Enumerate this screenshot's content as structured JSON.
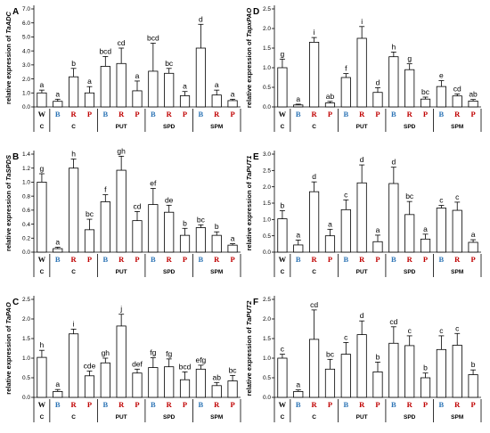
{
  "colors": {
    "W": "#000000",
    "C": "#000000",
    "B": "#2e75b6",
    "R": "#c00000",
    "P": "#c00000"
  },
  "chart_data": [
    {
      "type": "bar",
      "panel": "A",
      "ylabel": "relative expression of TaADC",
      "ylim": [
        0,
        7
      ],
      "yticks": [
        0,
        1,
        2,
        3,
        4,
        5,
        6,
        7
      ],
      "ytick_labels": [
        "0.0",
        "1.0",
        "2.0",
        "3.0",
        "4.0",
        "5.0",
        "6.0",
        "7.0"
      ],
      "categories": [
        "W",
        "B",
        "R",
        "P",
        "B",
        "R",
        "P",
        "B",
        "R",
        "P",
        "B",
        "R",
        "P"
      ],
      "values": [
        1.0,
        0.4,
        2.15,
        1.0,
        2.9,
        3.1,
        1.15,
        2.55,
        2.4,
        0.8,
        4.2,
        0.85,
        0.45
      ],
      "errors": [
        0.2,
        0.15,
        0.6,
        0.45,
        0.7,
        1.1,
        0.7,
        2.0,
        0.35,
        0.3,
        1.7,
        0.35,
        0.1
      ],
      "letters": [
        "a",
        "a",
        "b",
        "a",
        "bcd",
        "cd",
        "a",
        "bcd",
        "bc",
        "a",
        "d",
        "a",
        "a"
      ],
      "groups": [
        "C",
        "C",
        "PUT",
        "SPD",
        "SPM"
      ]
    },
    {
      "type": "bar",
      "panel": "D",
      "ylabel": "relative expression of TapxPAO",
      "ylim": [
        0,
        2.5
      ],
      "yticks": [
        0,
        0.5,
        1,
        1.5,
        2,
        2.5
      ],
      "ytick_labels": [
        "0.0",
        "0.5",
        "1.0",
        "1.5",
        "2.0",
        "2.5"
      ],
      "categories": [
        "W",
        "B",
        "R",
        "P",
        "B",
        "R",
        "P",
        "B",
        "R",
        "P",
        "B",
        "R",
        "P"
      ],
      "values": [
        1.0,
        0.05,
        1.65,
        0.1,
        0.75,
        1.75,
        0.37,
        1.28,
        0.95,
        0.2,
        0.52,
        0.28,
        0.15
      ],
      "errors": [
        0.22,
        0.02,
        0.12,
        0.04,
        0.1,
        0.3,
        0.12,
        0.12,
        0.15,
        0.05,
        0.15,
        0.05,
        0.04
      ],
      "letters": [
        "g",
        "a",
        "i",
        "ab",
        "f",
        "i",
        "d",
        "h",
        "g",
        "bc",
        "e",
        "cd",
        "ab"
      ],
      "groups": [
        "C",
        "C",
        "PUT",
        "SPD",
        "SPM"
      ]
    },
    {
      "type": "bar",
      "panel": "B",
      "ylabel": "relative expression of TaSPDS",
      "ylim": [
        0,
        1.4
      ],
      "yticks": [
        0,
        0.2,
        0.4,
        0.6,
        0.8,
        1,
        1.2,
        1.4
      ],
      "ytick_labels": [
        "0.0",
        "0.2",
        "0.4",
        "0.6",
        "0.8",
        "1.0",
        "1.2",
        "1.4"
      ],
      "categories": [
        "W",
        "B",
        "R",
        "P",
        "B",
        "R",
        "P",
        "B",
        "R",
        "P",
        "B",
        "R",
        "P"
      ],
      "values": [
        1.0,
        0.05,
        1.2,
        0.32,
        0.72,
        1.17,
        0.45,
        0.68,
        0.57,
        0.24,
        0.35,
        0.24,
        0.1
      ],
      "errors": [
        0.12,
        0.02,
        0.13,
        0.15,
        0.1,
        0.2,
        0.13,
        0.23,
        0.1,
        0.1,
        0.04,
        0.05,
        0.02
      ],
      "letters": [
        "g",
        "a",
        "h",
        "bc",
        "f",
        "gh",
        "cd",
        "ef",
        "de",
        "b",
        "bc",
        "b",
        "a"
      ],
      "groups": [
        "C",
        "C",
        "PUT",
        "SPD",
        "SPM"
      ]
    },
    {
      "type": "bar",
      "panel": "E",
      "ylabel": "relative expression of TaPUT1",
      "ylim": [
        0,
        3
      ],
      "yticks": [
        0,
        0.5,
        1,
        1.5,
        2,
        2.5,
        3
      ],
      "ytick_labels": [
        "0.0",
        "0.5",
        "1.0",
        "1.5",
        "2.0",
        "2.5",
        "3.0"
      ],
      "categories": [
        "W",
        "B",
        "R",
        "P",
        "B",
        "R",
        "P",
        "B",
        "R",
        "P",
        "B",
        "R",
        "P"
      ],
      "values": [
        1.02,
        0.22,
        1.85,
        0.5,
        1.3,
        2.12,
        0.32,
        2.1,
        1.15,
        0.4,
        1.35,
        1.28,
        0.3
      ],
      "errors": [
        0.25,
        0.15,
        0.3,
        0.2,
        0.3,
        0.55,
        0.2,
        0.5,
        0.4,
        0.15,
        0.08,
        0.25,
        0.08
      ],
      "letters": [
        "b",
        "a",
        "d",
        "a",
        "c",
        "d",
        "a",
        "d",
        "bc",
        "a",
        "c",
        "c",
        "a"
      ],
      "groups": [
        "C",
        "C",
        "PUT",
        "SPD",
        "SPM"
      ]
    },
    {
      "type": "bar",
      "panel": "C",
      "ylabel": "relative expression of TaPAO",
      "ylim": [
        0,
        2.5
      ],
      "yticks": [
        0,
        0.5,
        1,
        1.5,
        2,
        2.5
      ],
      "ytick_labels": [
        "0.0",
        "0.5",
        "1.0",
        "1.5",
        "2.0",
        "2.5"
      ],
      "categories": [
        "W",
        "B",
        "R",
        "P",
        "B",
        "R",
        "P",
        "B",
        "R",
        "P",
        "B",
        "R",
        "P"
      ],
      "values": [
        1.02,
        0.15,
        1.62,
        0.55,
        0.88,
        1.82,
        0.62,
        0.76,
        0.78,
        0.45,
        0.72,
        0.3,
        0.42
      ],
      "errors": [
        0.18,
        0.05,
        0.12,
        0.12,
        0.12,
        0.3,
        0.1,
        0.25,
        0.2,
        0.2,
        0.1,
        0.08,
        0.14
      ],
      "letters": [
        "h",
        "a",
        "i",
        "cde",
        "gh",
        "j",
        "def",
        "fg",
        "fg",
        "bcd",
        "efg",
        "ab",
        "bc"
      ],
      "groups": [
        "C",
        "C",
        "PUT",
        "SPD",
        "SPM"
      ]
    },
    {
      "type": "bar",
      "panel": "F",
      "ylabel": "relative expression of TaPUT2",
      "ylim": [
        0,
        2.5
      ],
      "yticks": [
        0,
        0.5,
        1,
        1.5,
        2,
        2.5
      ],
      "ytick_labels": [
        "0.0",
        "0.5",
        "1.0",
        "1.5",
        "2.0",
        "2.5"
      ],
      "categories": [
        "W",
        "B",
        "R",
        "P",
        "B",
        "R",
        "P",
        "B",
        "R",
        "P",
        "B",
        "R",
        "P"
      ],
      "values": [
        1.0,
        0.15,
        1.48,
        0.72,
        1.1,
        1.6,
        0.65,
        1.38,
        1.32,
        0.5,
        1.22,
        1.33,
        0.58
      ],
      "errors": [
        0.1,
        0.04,
        0.75,
        0.25,
        0.3,
        0.35,
        0.25,
        0.42,
        0.25,
        0.12,
        0.35,
        0.3,
        0.12
      ],
      "letters": [
        "c",
        "a",
        "cd",
        "bc",
        "c",
        "d",
        "b",
        "cd",
        "c",
        "b",
        "c",
        "c",
        "b"
      ],
      "groups": [
        "C",
        "C",
        "PUT",
        "SPD",
        "SPM"
      ]
    }
  ]
}
